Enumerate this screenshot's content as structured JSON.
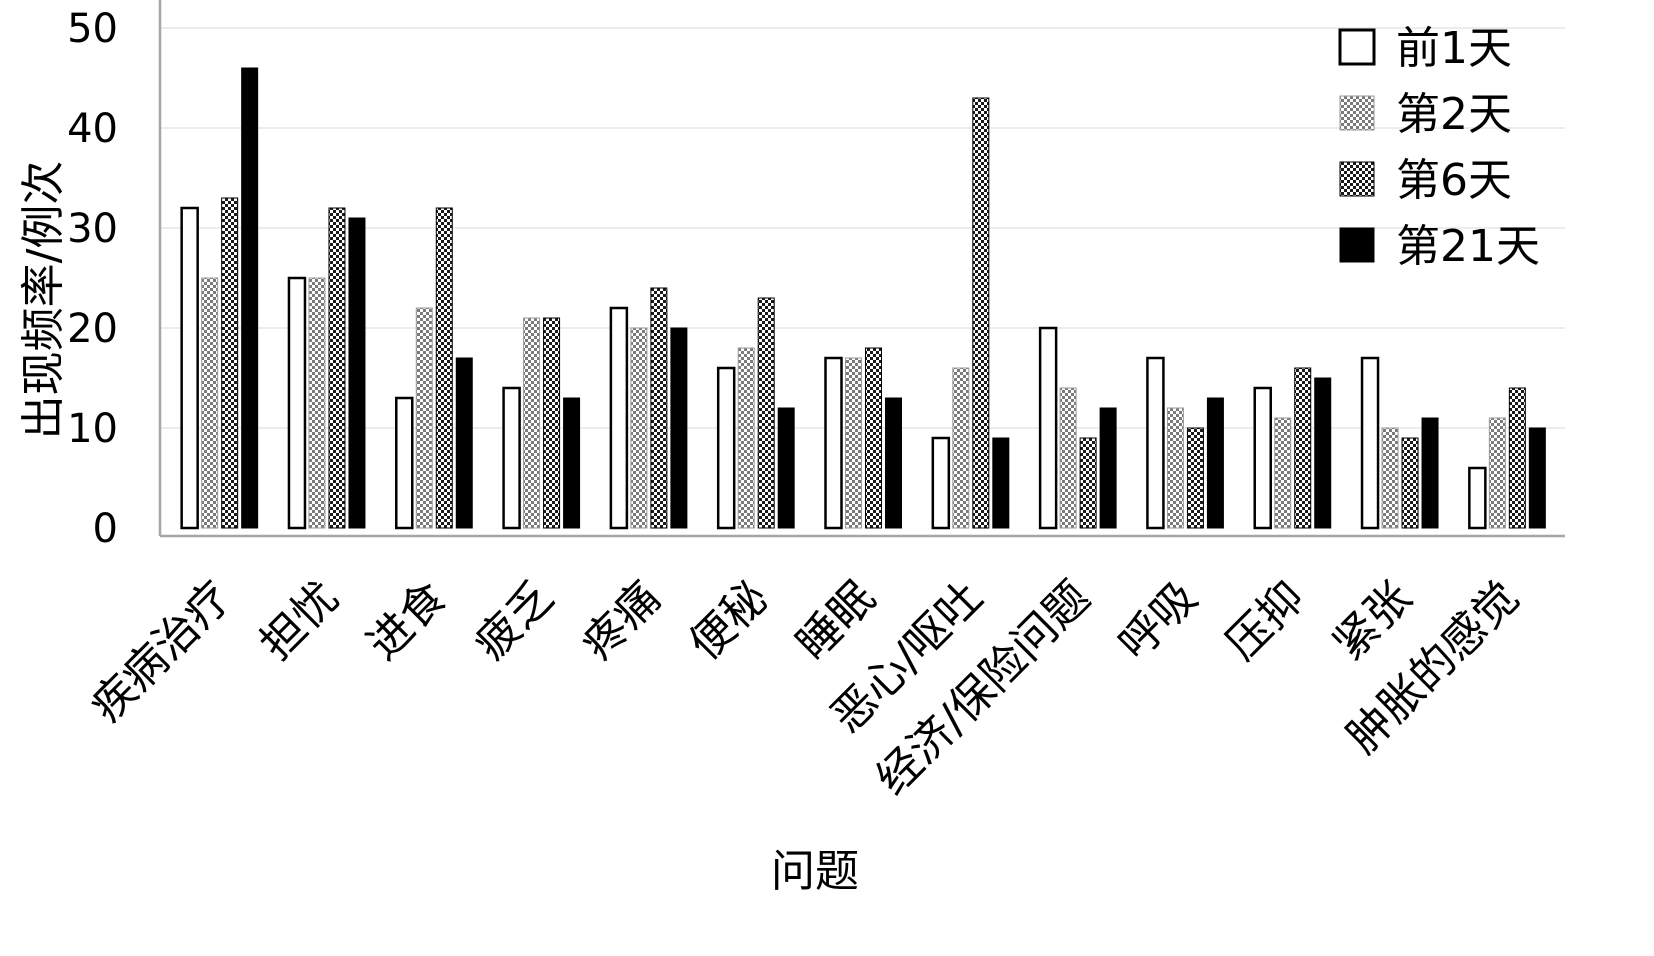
{
  "chart_data": {
    "type": "bar",
    "title": "",
    "xlabel": "问题",
    "ylabel": "出现频率/例次",
    "ylim": [
      0,
      50
    ],
    "yticks": [
      0,
      10,
      20,
      30,
      40,
      50
    ],
    "grid": true,
    "legend_position": "top-right",
    "categories": [
      "疾病治疗",
      "担忧",
      "进食",
      "疲乏",
      "疼痛",
      "便秘",
      "睡眠",
      "恶心/呕吐",
      "经济/保险问题",
      "呼吸",
      "压抑",
      "紧张",
      "肿胀的感觉"
    ],
    "series": [
      {
        "name": "前1天",
        "pattern": "open-white",
        "values": [
          32,
          25,
          13,
          14,
          22,
          16,
          17,
          9,
          20,
          17,
          14,
          17,
          6
        ]
      },
      {
        "name": "第2天",
        "pattern": "light-checker",
        "values": [
          25,
          25,
          22,
          21,
          20,
          18,
          17,
          16,
          14,
          12,
          11,
          10,
          11
        ]
      },
      {
        "name": "第6天",
        "pattern": "dark-checker",
        "values": [
          33,
          32,
          32,
          21,
          24,
          23,
          18,
          43,
          9,
          10,
          16,
          9,
          14
        ]
      },
      {
        "name": "第21天",
        "pattern": "solid-black",
        "values": [
          46,
          31,
          17,
          13,
          20,
          12,
          13,
          9,
          12,
          13,
          15,
          11,
          10
        ]
      }
    ]
  }
}
